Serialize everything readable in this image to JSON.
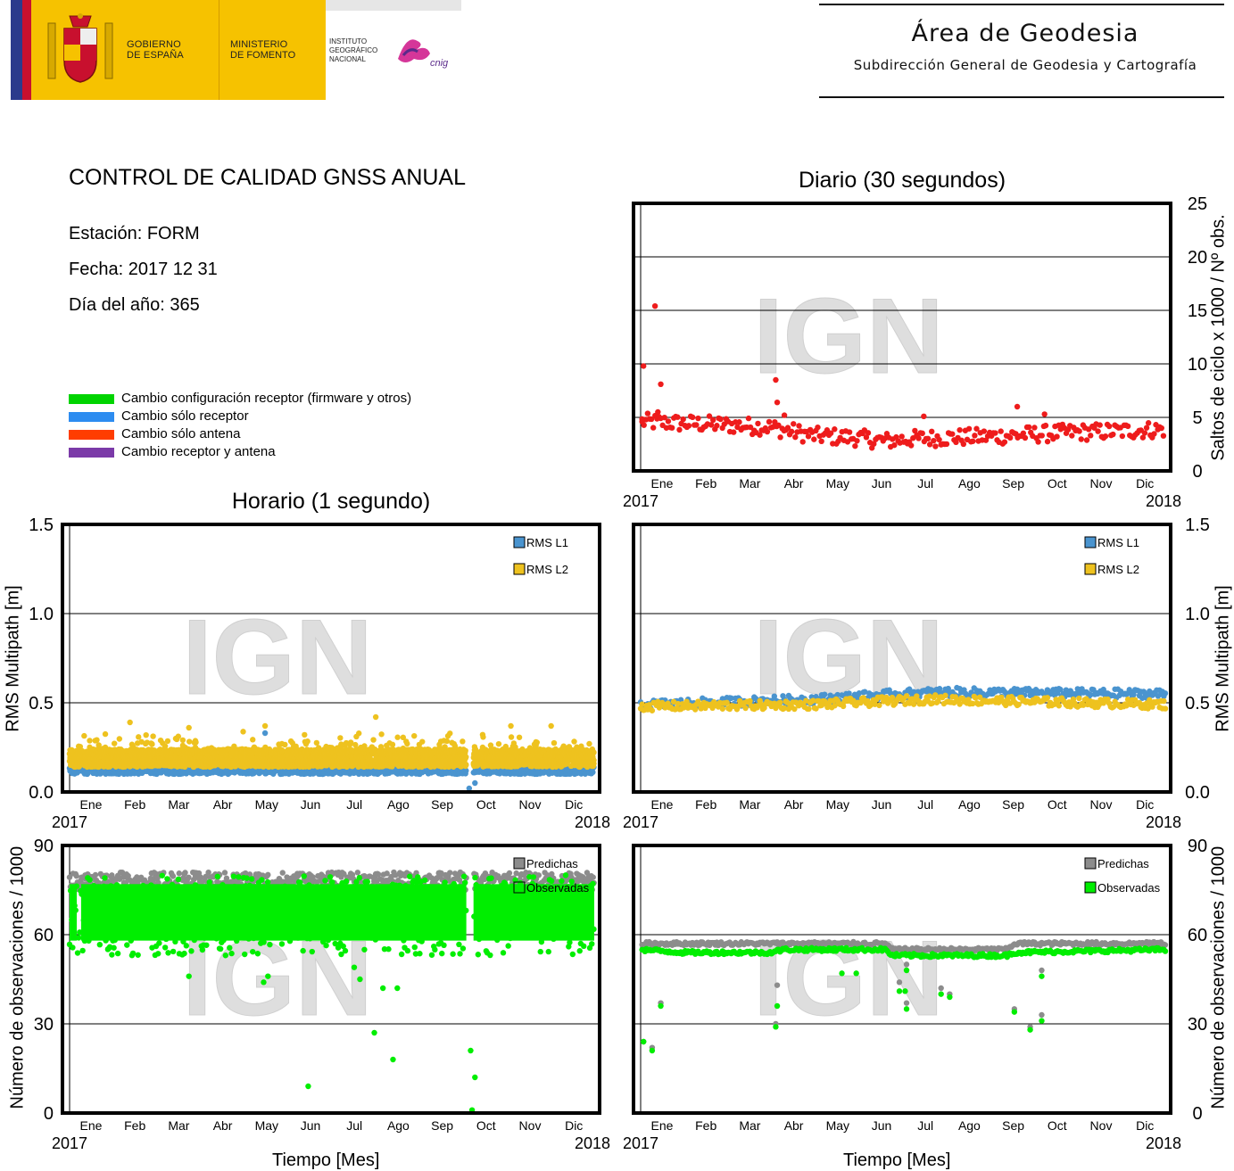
{
  "header": {
    "gobierno": [
      "GOBIERNO",
      "DE ESPAÑA"
    ],
    "ministerio": [
      "MINISTERIO",
      "DE FOMENTO"
    ],
    "ign": [
      "INSTITUTO",
      "GEOGRÁFICO",
      "NACIONAL"
    ],
    "ign_logo": "cnig",
    "area_title": "Área de Geodesia",
    "area_subtitle": "Subdirección General de Geodesia y Cartografía"
  },
  "report": {
    "title": "CONTROL DE CALIDAD GNSS ANUAL",
    "station": "Estación: FORM",
    "date": "Fecha: 2017 12 31",
    "doy": "Día del año: 365"
  },
  "legend": [
    {
      "label": "Cambio configuración receptor (firmware y otros)",
      "color": "#00d400"
    },
    {
      "label": "Cambio sólo receptor",
      "color": "#2d8cf0"
    },
    {
      "label": "Cambio sólo antena",
      "color": "#ff3d00"
    },
    {
      "label": "Cambio receptor y antena",
      "color": "#7b3aa8"
    }
  ],
  "watermark": "IGN",
  "months": [
    "Ene",
    "Feb",
    "Mar",
    "Abr",
    "May",
    "Jun",
    "Jul",
    "Ago",
    "Sep",
    "Oct",
    "Nov",
    "Dic"
  ],
  "years": [
    "2017",
    "2018"
  ],
  "section_titles": {
    "daily": "Diario (30 segundos)",
    "hourly": "Horario (1 segundo)"
  },
  "axis_labels": {
    "cycle_slips": "Saltos de ciclo x 1000 / Nº obs.",
    "multipath": "RMS Multipath [m]",
    "observations": "Número de observaciones / 1000",
    "time": "Tiempo [Mes]"
  },
  "chart_data": [
    {
      "id": "daily-cycle-slips",
      "type": "scatter",
      "title": "Diario (30 segundos)",
      "ylabel": "Saltos de ciclo x 1000 / Nº obs.",
      "xlabel": "",
      "ylim": [
        0,
        25
      ],
      "yticks": [
        "0",
        "5",
        "10",
        "15",
        "20",
        "25"
      ],
      "xlim": [
        0,
        365
      ],
      "grid": true,
      "series": [
        {
          "color": "#ee1c1c",
          "baseline": [
            [
              0,
              4.6
            ],
            [
              60,
              4.3
            ],
            [
              90,
              4.1
            ],
            [
              120,
              3.3
            ],
            [
              150,
              3.1
            ],
            [
              170,
              2.8
            ],
            [
              190,
              3.0
            ],
            [
              210,
              3.1
            ],
            [
              240,
              3.2
            ],
            [
              270,
              3.4
            ],
            [
              300,
              3.6
            ],
            [
              330,
              3.7
            ],
            [
              365,
              3.9
            ]
          ],
          "outliers": [
            [
              2,
              9.8
            ],
            [
              10,
              15.4
            ],
            [
              14,
              8.1
            ],
            [
              12,
              5.5
            ],
            [
              94,
              8.5
            ],
            [
              95,
              6.4
            ],
            [
              100,
              5.2
            ],
            [
              262,
              6.0
            ],
            [
              281,
              5.3
            ],
            [
              197,
              5.1
            ],
            [
              1,
              4.6
            ]
          ]
        }
      ]
    },
    {
      "id": "hourly-multipath",
      "type": "scatter",
      "title": "Horario (1 segundo)",
      "ylabel": "RMS Multipath [m]",
      "ylim": [
        0.0,
        1.5
      ],
      "yticks": [
        "0.0",
        "0.5",
        "1.0",
        "1.5"
      ],
      "xlim": [
        0,
        365
      ],
      "grid": true,
      "legend_position": "top-right",
      "series": [
        {
          "name": "RMS L1",
          "color": "#4a94cf",
          "level": 0.12,
          "spread": 0.02,
          "gap": [
            276,
            281
          ],
          "outliers": [
            [
              278,
              0.02
            ],
            [
              282,
              0.05
            ],
            [
              136,
              0.33
            ]
          ]
        },
        {
          "name": "RMS L2",
          "color": "#eec21f",
          "level": 0.19,
          "spread": 0.05,
          "gap": [
            276,
            281
          ],
          "outliers": [
            [
              42,
              0.39
            ],
            [
              83,
              0.36
            ],
            [
              136,
              0.37
            ],
            [
              213,
              0.42
            ],
            [
              307,
              0.37
            ],
            [
              335,
              0.37
            ]
          ]
        }
      ]
    },
    {
      "id": "daily-multipath",
      "type": "scatter",
      "title": "",
      "ylabel": "RMS Multipath [m]",
      "ylim": [
        0.0,
        1.5
      ],
      "yticks": [
        "0.0",
        "0.5",
        "1.0",
        "1.5"
      ],
      "xlim": [
        0,
        365
      ],
      "grid": true,
      "legend_position": "top-right",
      "series": [
        {
          "name": "RMS L1",
          "color": "#4a94cf",
          "baseline": [
            [
              0,
              0.49
            ],
            [
              120,
              0.52
            ],
            [
              180,
              0.55
            ],
            [
              210,
              0.56
            ],
            [
              365,
              0.55
            ]
          ],
          "spread": 0.025
        },
        {
          "name": "RMS L2",
          "color": "#eec21f",
          "baseline": [
            [
              0,
              0.48
            ],
            [
              120,
              0.49
            ],
            [
              200,
              0.52
            ],
            [
              365,
              0.49
            ]
          ],
          "spread": 0.025
        }
      ]
    },
    {
      "id": "hourly-observations",
      "type": "scatter",
      "title": "",
      "ylabel": "Número de observaciones / 1000",
      "xlabel": "Tiempo [Mes]",
      "ylim": [
        0,
        90
      ],
      "yticks": [
        "0",
        "30",
        "60",
        "90"
      ],
      "xlim": [
        0,
        365
      ],
      "grid": true,
      "legend_position": "top-right",
      "series": [
        {
          "name": "Predichas",
          "color": "#8c8c8c",
          "level": 78,
          "spread": 3
        },
        {
          "name": "Observadas",
          "color": "#00ee00",
          "band": [
            53,
            80
          ],
          "gap": [
            276,
            281
          ],
          "outliers": [
            [
              166,
              9
            ],
            [
              198,
              49
            ],
            [
              202,
              45
            ],
            [
              212,
              27
            ],
            [
              225,
              18
            ],
            [
              218,
              42
            ],
            [
              228,
              42
            ],
            [
              279,
              21
            ],
            [
              282,
              12
            ],
            [
              280,
              1
            ],
            [
              83,
              46
            ],
            [
              135,
              44
            ],
            [
              138,
              46
            ]
          ]
        }
      ]
    },
    {
      "id": "daily-observations",
      "type": "scatter",
      "title": "",
      "ylabel": "Número de observaciones / 1000",
      "xlabel": "Tiempo [Mes]",
      "ylim": [
        0,
        90
      ],
      "yticks": [
        "0",
        "30",
        "60",
        "90"
      ],
      "xlim": [
        0,
        365
      ],
      "grid": true,
      "legend_position": "top-right",
      "series": [
        {
          "name": "Predichas",
          "color": "#8c8c8c",
          "baseline": [
            [
              0,
              57
            ],
            [
              170,
              57
            ],
            [
              175,
              55
            ],
            [
              255,
              55
            ],
            [
              260,
              57
            ],
            [
              365,
              57
            ]
          ],
          "spread": 0.6,
          "outliers": [
            [
              2,
              24
            ],
            [
              8,
              22
            ],
            [
              14,
              37
            ],
            [
              94,
              30
            ],
            [
              95,
              43
            ],
            [
              180,
              44
            ],
            [
              185,
              37
            ],
            [
              209,
              42
            ],
            [
              215,
              40
            ],
            [
              260,
              35
            ],
            [
              271,
              29
            ],
            [
              279,
              33
            ],
            [
              279,
              48
            ],
            [
              185,
              50
            ]
          ]
        },
        {
          "name": "Observadas",
          "color": "#00ee00",
          "baseline": [
            [
              0,
              55
            ],
            [
              30,
              54
            ],
            [
              90,
              54
            ],
            [
              100,
              55
            ],
            [
              170,
              55
            ],
            [
              175,
              53
            ],
            [
              255,
              53
            ],
            [
              260,
              54
            ],
            [
              365,
              55
            ]
          ],
          "spread": 0.6,
          "outliers": [
            [
              2,
              24
            ],
            [
              8,
              21
            ],
            [
              14,
              36
            ],
            [
              94,
              29
            ],
            [
              95,
              36
            ],
            [
              140,
              47
            ],
            [
              150,
              47
            ],
            [
              180,
              41
            ],
            [
              185,
              35
            ],
            [
              209,
              40
            ],
            [
              215,
              39
            ],
            [
              260,
              34
            ],
            [
              271,
              28
            ],
            [
              279,
              31
            ],
            [
              279,
              46
            ],
            [
              185,
              48
            ],
            [
              184,
              41
            ]
          ]
        }
      ]
    }
  ]
}
